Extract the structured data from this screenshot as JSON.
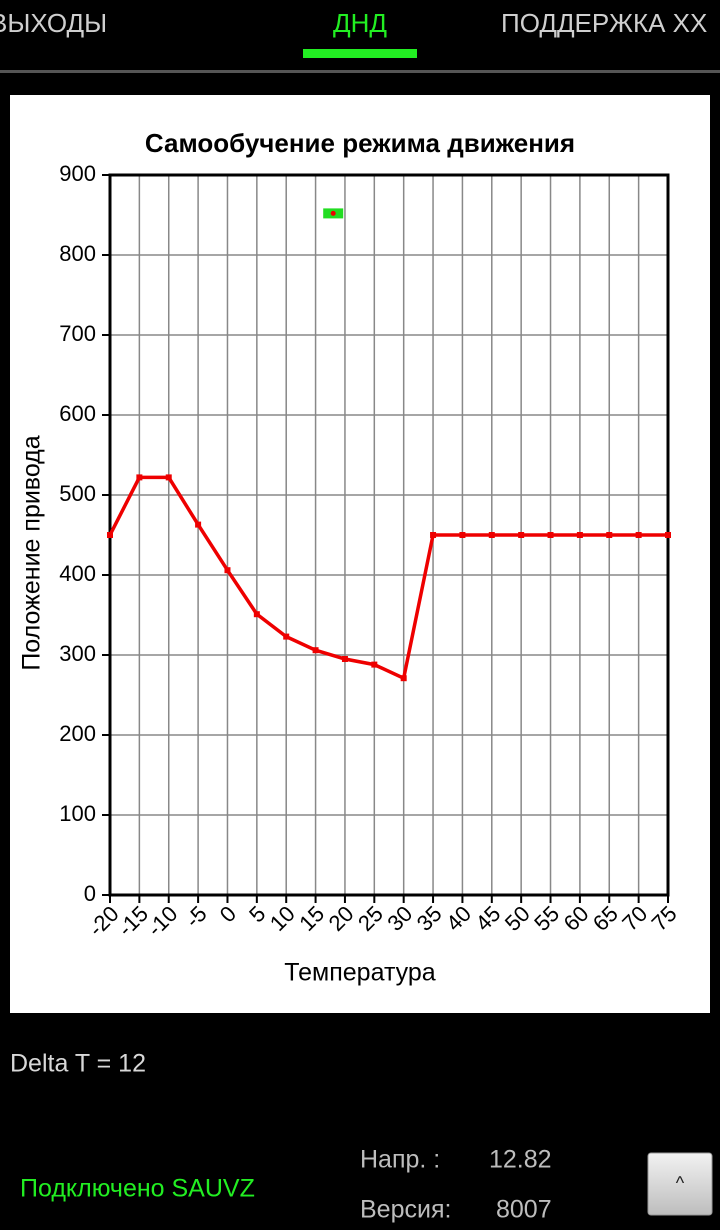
{
  "tabs": [
    "ВЫХОДЫ",
    "ДНД",
    "ПОДДЕРЖКА ХХ"
  ],
  "chart_data": {
    "type": "line",
    "title": "Самообучение режима движения",
    "xlabel": "Температура",
    "ylabel": "Положение привода",
    "x": [
      -20,
      -15,
      -10,
      -5,
      0,
      5,
      10,
      15,
      20,
      25,
      30,
      35,
      40,
      45,
      50,
      55,
      60,
      65,
      70,
      75
    ],
    "series": [
      {
        "color": "#ee0000",
        "values": [
          450,
          522,
          522,
          463,
          406,
          351,
          323,
          306,
          295,
          288,
          271,
          450,
          450,
          450,
          450,
          450,
          450,
          450,
          450,
          450
        ]
      }
    ],
    "marker": {
      "x": 18,
      "y": 852,
      "color": "#22dd22",
      "dot_color": "#ee0000"
    },
    "xlim": [
      -20,
      75
    ],
    "ylim": [
      0,
      900
    ],
    "xticks": [
      -20,
      -15,
      -10,
      -5,
      0,
      5,
      10,
      15,
      20,
      25,
      30,
      35,
      40,
      45,
      50,
      55,
      60,
      65,
      70,
      75
    ],
    "yticks": [
      0,
      100,
      200,
      300,
      400,
      500,
      600,
      700,
      800,
      900
    ],
    "grid": true
  },
  "status": {
    "delta": "Delta T = 12",
    "connection": "Подключено SAUVZ",
    "voltage_label": "Напр. :",
    "voltage_value": "12.82",
    "version_label": "Версия:",
    "version_value": "8007"
  },
  "button": "^"
}
